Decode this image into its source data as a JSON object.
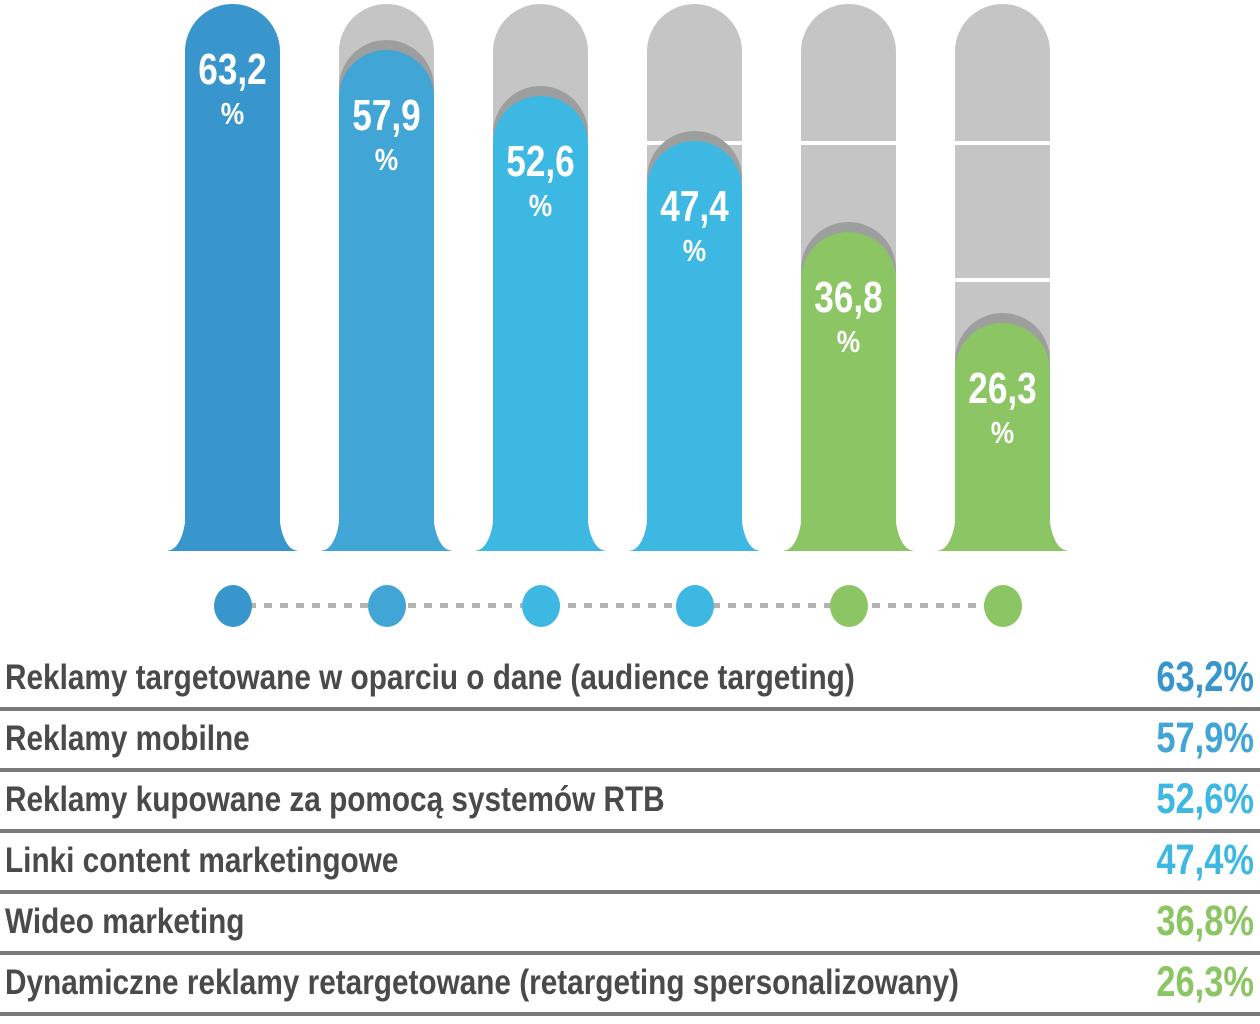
{
  "chart_data": {
    "type": "bar",
    "title": "",
    "unit": "%",
    "categories": [
      "Reklamy targetowane w oparciu o dane (audience targeting)",
      "Reklamy mobilne",
      "Reklamy kupowane za pomocą systemów RTB",
      "Linki content marketingowe",
      "Wideo marketing",
      "Dynamiczne reklamy retargetowane (retargeting spersonalizowany)"
    ],
    "values": [
      63.2,
      57.9,
      52.6,
      47.4,
      36.8,
      26.3
    ],
    "value_labels": [
      "63,2",
      "57,9",
      "52,6",
      "47,4",
      "36,8",
      "26,3"
    ],
    "colors": [
      "#3896cd",
      "#41a5d6",
      "#3db8e2",
      "#3db8e2",
      "#8cc563",
      "#8cc563"
    ],
    "ymax": 63.2,
    "orientation": "vertical",
    "grid": "off",
    "legend_position": "none",
    "track_color": "#c5c5c5",
    "track_divider_color": "#ffffff",
    "cap_shadow_color": "#9d9e9e",
    "connector_dash_color": "#b3b3b0",
    "separator_color": "#7a7a7a",
    "row_label_color": "#4a4a4a",
    "bar_value_text_color": "#ffffff",
    "background_color": "#ffffff"
  }
}
